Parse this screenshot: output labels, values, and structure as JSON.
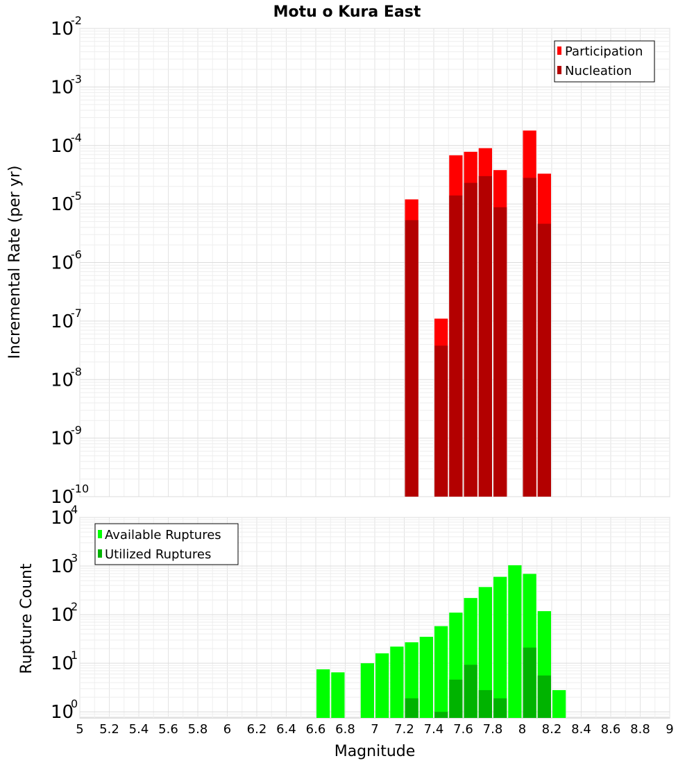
{
  "chart_data": [
    {
      "type": "bar",
      "title": "Motu o Kura East",
      "ylabel": "Incremental Rate (per yr)",
      "xlabel": "",
      "xlim": [
        5,
        9
      ],
      "ylim": [
        1e-10,
        0.01
      ],
      "yscale": "log",
      "grid": true,
      "legend_position": "top-right",
      "x": [
        7.25,
        7.45,
        7.55,
        7.65,
        7.75,
        7.85,
        8.05,
        8.15
      ],
      "series": [
        {
          "name": "Participation",
          "color": "#ff0000",
          "values": [
            1.2e-05,
            1.1e-07,
            6.8e-05,
            7.8e-05,
            9e-05,
            3.8e-05,
            0.00018,
            3.3e-05
          ]
        },
        {
          "name": "Nucleation",
          "color": "#b30000",
          "values": [
            5.3e-06,
            3.8e-08,
            1.4e-05,
            2.3e-05,
            3e-05,
            8.8e-06,
            2.8e-05,
            4.6e-06
          ]
        }
      ],
      "y_ticks": [
        {
          "base": "10",
          "exp": "-10"
        },
        {
          "base": "10",
          "exp": "-9"
        },
        {
          "base": "10",
          "exp": "-8"
        },
        {
          "base": "10",
          "exp": "-7"
        },
        {
          "base": "10",
          "exp": "-6"
        },
        {
          "base": "10",
          "exp": "-5"
        },
        {
          "base": "10",
          "exp": "-4"
        },
        {
          "base": "10",
          "exp": "-3"
        },
        {
          "base": "10",
          "exp": "-2"
        }
      ]
    },
    {
      "type": "bar",
      "title": "",
      "ylabel": "Rupture Count",
      "xlabel": "Magnitude",
      "xlim": [
        5,
        9
      ],
      "ylim": [
        0.75,
        10000
      ],
      "yscale": "log",
      "grid": true,
      "legend_position": "top-left",
      "x_ticks": [
        "5",
        "5.2",
        "5.4",
        "5.6",
        "5.8",
        "6",
        "6.2",
        "6.4",
        "6.6",
        "6.8",
        "7",
        "7.2",
        "7.4",
        "7.6",
        "7.8",
        "8",
        "8.2",
        "8.4",
        "8.6",
        "8.8",
        "9"
      ],
      "series": [
        {
          "name": "Available Ruptures",
          "color": "#00ff00",
          "x": [
            6.65,
            6.75,
            6.95,
            7.05,
            7.15,
            7.25,
            7.35,
            7.45,
            7.55,
            7.65,
            7.75,
            7.85,
            7.95,
            8.05,
            8.15,
            8.25
          ],
          "values": [
            7.5,
            6.5,
            10,
            16,
            22,
            27,
            35,
            58,
            110,
            220,
            370,
            600,
            1040,
            690,
            118,
            2.8
          ]
        },
        {
          "name": "Utilized Ruptures",
          "color": "#00b300",
          "x": [
            7.25,
            7.45,
            7.55,
            7.65,
            7.75,
            7.85,
            8.05,
            8.15
          ],
          "values": [
            1.9,
            1.0,
            4.6,
            9.3,
            2.8,
            1.9,
            21,
            5.6
          ]
        }
      ],
      "y_ticks": [
        {
          "base": "10",
          "exp": "0"
        },
        {
          "base": "10",
          "exp": "1"
        },
        {
          "base": "10",
          "exp": "2"
        },
        {
          "base": "10",
          "exp": "3"
        },
        {
          "base": "10",
          "exp": "4"
        }
      ]
    }
  ]
}
